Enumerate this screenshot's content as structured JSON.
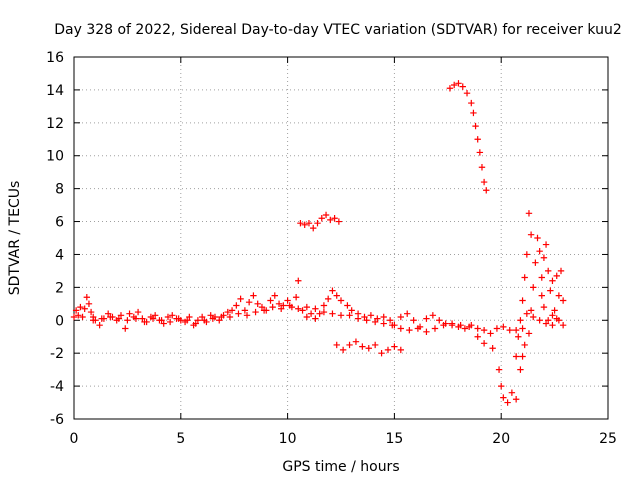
{
  "chart_data": {
    "type": "scatter",
    "title": "Day 328 of 2022, Sidereal Day-to-day VTEC variation (SDTVAR) for receiver kuu2",
    "xlabel": "GPS time / hours",
    "ylabel": "SDTVAR / TECUs",
    "xlim": [
      0,
      25
    ],
    "ylim": [
      -6,
      16
    ],
    "x_ticks": [
      0,
      5,
      10,
      15,
      20,
      25
    ],
    "y_ticks": [
      -6,
      -4,
      -2,
      0,
      2,
      4,
      6,
      8,
      10,
      12,
      14,
      16
    ],
    "x_tick_labels": [
      "0",
      "5",
      "10",
      "15",
      "20",
      "25"
    ],
    "y_tick_labels": [
      "-6",
      "-4",
      "-2",
      "0",
      "2",
      "4",
      "6",
      "8",
      "10",
      "12",
      "14",
      "16"
    ],
    "grid": true,
    "marker": "+",
    "marker_color": "#ff0000",
    "series": [
      {
        "name": "SDTVAR",
        "points": [
          [
            0.0,
            0.2
          ],
          [
            0.1,
            0.6
          ],
          [
            0.2,
            0.3
          ],
          [
            0.3,
            0.8
          ],
          [
            0.4,
            0.2
          ],
          [
            0.5,
            0.7
          ],
          [
            0.6,
            1.4
          ],
          [
            0.7,
            1.0
          ],
          [
            0.8,
            0.5
          ],
          [
            0.9,
            0.2
          ],
          [
            1.0,
            0.0
          ],
          [
            1.2,
            -0.3
          ],
          [
            1.4,
            0.1
          ],
          [
            1.6,
            0.4
          ],
          [
            1.8,
            0.2
          ],
          [
            2.0,
            0.0
          ],
          [
            2.2,
            0.3
          ],
          [
            2.4,
            -0.5
          ],
          [
            2.6,
            0.4
          ],
          [
            2.8,
            0.2
          ],
          [
            3.0,
            0.5
          ],
          [
            3.2,
            0.1
          ],
          [
            3.4,
            -0.1
          ],
          [
            3.6,
            0.2
          ],
          [
            3.8,
            0.3
          ],
          [
            4.0,
            0.0
          ],
          [
            4.2,
            -0.2
          ],
          [
            4.4,
            0.2
          ],
          [
            4.6,
            0.3
          ],
          [
            4.8,
            0.1
          ],
          [
            5.0,
            0.0
          ],
          [
            5.2,
            -0.1
          ],
          [
            5.4,
            0.2
          ],
          [
            5.6,
            -0.3
          ],
          [
            5.8,
            0.0
          ],
          [
            6.0,
            0.2
          ],
          [
            6.2,
            -0.1
          ],
          [
            6.4,
            0.3
          ],
          [
            6.6,
            0.2
          ],
          [
            6.8,
            0.0
          ],
          [
            7.0,
            0.3
          ],
          [
            7.2,
            0.5
          ],
          [
            7.4,
            0.6
          ],
          [
            7.6,
            0.9
          ],
          [
            7.8,
            1.3
          ],
          [
            8.0,
            0.6
          ],
          [
            8.2,
            1.1
          ],
          [
            8.4,
            1.5
          ],
          [
            8.6,
            1.0
          ],
          [
            8.8,
            0.8
          ],
          [
            9.0,
            0.6
          ],
          [
            9.2,
            1.2
          ],
          [
            9.4,
            1.5
          ],
          [
            9.6,
            1.0
          ],
          [
            9.8,
            0.9
          ],
          [
            10.0,
            1.2
          ],
          [
            10.2,
            0.8
          ],
          [
            10.4,
            1.4
          ],
          [
            10.5,
            2.4
          ],
          [
            10.7,
            0.6
          ],
          [
            10.9,
            0.2
          ],
          [
            11.1,
            0.4
          ],
          [
            11.3,
            0.1
          ],
          [
            11.5,
            0.4
          ],
          [
            11.7,
            0.9
          ],
          [
            11.9,
            1.3
          ],
          [
            12.1,
            1.8
          ],
          [
            12.3,
            1.5
          ],
          [
            12.5,
            1.2
          ],
          [
            12.8,
            0.9
          ],
          [
            13.0,
            0.6
          ],
          [
            13.3,
            0.4
          ],
          [
            13.6,
            0.2
          ],
          [
            13.9,
            0.3
          ],
          [
            14.2,
            0.1
          ],
          [
            14.5,
            0.2
          ],
          [
            14.8,
            0.0
          ],
          [
            15.0,
            -0.3
          ],
          [
            15.3,
            0.2
          ],
          [
            15.6,
            0.4
          ],
          [
            15.9,
            0.0
          ],
          [
            16.2,
            -0.4
          ],
          [
            16.5,
            0.1
          ],
          [
            16.8,
            0.3
          ],
          [
            17.1,
            0.0
          ],
          [
            17.4,
            -0.2
          ],
          [
            17.7,
            -0.3
          ],
          [
            18.0,
            -0.4
          ],
          [
            18.3,
            -0.5
          ],
          [
            18.6,
            -0.3
          ],
          [
            18.9,
            -0.5
          ],
          [
            19.2,
            -0.6
          ],
          [
            19.5,
            -0.8
          ],
          [
            19.8,
            -0.5
          ],
          [
            20.1,
            -0.4
          ],
          [
            20.4,
            -0.6
          ],
          [
            20.7,
            -0.6
          ],
          [
            21.0,
            -0.5
          ],
          [
            21.2,
            0.4
          ],
          [
            21.5,
            0.2
          ],
          [
            21.8,
            0.0
          ],
          [
            22.1,
            -0.2
          ],
          [
            22.4,
            0.3
          ],
          [
            22.7,
            0.0
          ],
          [
            22.9,
            -0.3
          ],
          [
            0.9,
            0.0
          ],
          [
            1.3,
            0.1
          ],
          [
            1.7,
            0.2
          ],
          [
            2.1,
            0.1
          ],
          [
            2.5,
            0.0
          ],
          [
            2.9,
            0.1
          ],
          [
            3.3,
            -0.1
          ],
          [
            3.7,
            0.1
          ],
          [
            4.1,
            0.0
          ],
          [
            4.5,
            -0.1
          ],
          [
            4.9,
            0.1
          ],
          [
            5.3,
            0.0
          ],
          [
            5.7,
            -0.2
          ],
          [
            6.1,
            0.0
          ],
          [
            6.5,
            0.1
          ],
          [
            6.9,
            0.2
          ],
          [
            7.3,
            0.2
          ],
          [
            7.7,
            0.4
          ],
          [
            8.1,
            0.3
          ],
          [
            8.5,
            0.5
          ],
          [
            8.9,
            0.6
          ],
          [
            9.3,
            0.8
          ],
          [
            9.7,
            0.7
          ],
          [
            10.1,
            0.9
          ],
          [
            10.5,
            0.7
          ],
          [
            10.9,
            0.8
          ],
          [
            11.3,
            0.7
          ],
          [
            11.7,
            0.5
          ],
          [
            12.1,
            0.4
          ],
          [
            12.5,
            0.3
          ],
          [
            12.9,
            0.3
          ],
          [
            13.3,
            0.1
          ],
          [
            13.7,
            0.0
          ],
          [
            14.1,
            -0.1
          ],
          [
            14.5,
            -0.2
          ],
          [
            14.9,
            -0.3
          ],
          [
            15.3,
            -0.5
          ],
          [
            15.7,
            -0.6
          ],
          [
            16.1,
            -0.5
          ],
          [
            16.5,
            -0.7
          ],
          [
            16.9,
            -0.5
          ],
          [
            17.3,
            -0.3
          ],
          [
            17.7,
            -0.2
          ],
          [
            18.1,
            -0.3
          ],
          [
            18.5,
            -0.4
          ],
          [
            18.9,
            -1.0
          ],
          [
            19.2,
            -1.4
          ],
          [
            19.6,
            -1.7
          ],
          [
            19.9,
            -3.0
          ],
          [
            20.0,
            -4.0
          ],
          [
            20.1,
            -4.7
          ],
          [
            20.3,
            -5.0
          ],
          [
            20.5,
            -4.4
          ],
          [
            20.7,
            -4.8
          ],
          [
            20.9,
            -3.0
          ],
          [
            21.0,
            -2.2
          ],
          [
            21.1,
            -1.5
          ],
          [
            21.3,
            -0.8
          ],
          [
            21.4,
            0.6
          ],
          [
            21.5,
            2.0
          ],
          [
            21.6,
            3.5
          ],
          [
            21.7,
            5.0
          ],
          [
            21.8,
            4.2
          ],
          [
            21.9,
            2.6
          ],
          [
            22.0,
            3.8
          ],
          [
            22.1,
            4.6
          ],
          [
            22.2,
            3.0
          ],
          [
            22.3,
            1.8
          ],
          [
            22.4,
            2.4
          ],
          [
            22.5,
            0.6
          ],
          [
            22.6,
            2.7
          ],
          [
            22.7,
            1.5
          ],
          [
            22.8,
            3.0
          ],
          [
            22.9,
            1.2
          ],
          [
            21.3,
            6.5
          ],
          [
            21.4,
            5.2
          ],
          [
            21.2,
            4.0
          ],
          [
            21.1,
            2.6
          ],
          [
            21.0,
            1.2
          ],
          [
            20.9,
            0.0
          ],
          [
            20.8,
            -1.0
          ],
          [
            20.7,
            -2.2
          ],
          [
            21.9,
            1.5
          ],
          [
            22.0,
            0.8
          ],
          [
            22.2,
            0.0
          ],
          [
            22.4,
            -0.3
          ],
          [
            22.6,
            0.1
          ],
          [
            10.6,
            5.9
          ],
          [
            10.8,
            5.8
          ],
          [
            11.0,
            5.9
          ],
          [
            11.2,
            5.6
          ],
          [
            11.4,
            5.9
          ],
          [
            11.6,
            6.2
          ],
          [
            11.8,
            6.4
          ],
          [
            12.0,
            6.1
          ],
          [
            12.2,
            6.2
          ],
          [
            12.4,
            6.0
          ],
          [
            12.3,
            -1.5
          ],
          [
            12.6,
            -1.8
          ],
          [
            12.9,
            -1.5
          ],
          [
            13.2,
            -1.3
          ],
          [
            13.5,
            -1.6
          ],
          [
            13.8,
            -1.7
          ],
          [
            14.1,
            -1.5
          ],
          [
            14.4,
            -2.0
          ],
          [
            14.7,
            -1.8
          ],
          [
            15.0,
            -1.6
          ],
          [
            15.3,
            -1.8
          ],
          [
            17.6,
            14.1
          ],
          [
            17.8,
            14.3
          ],
          [
            18.0,
            14.4
          ],
          [
            18.2,
            14.2
          ],
          [
            18.4,
            13.8
          ],
          [
            18.6,
            13.2
          ],
          [
            18.7,
            12.6
          ],
          [
            18.8,
            11.8
          ],
          [
            18.9,
            11.0
          ],
          [
            19.0,
            10.2
          ],
          [
            19.1,
            9.3
          ],
          [
            19.2,
            8.4
          ],
          [
            19.3,
            7.9
          ]
        ]
      }
    ]
  }
}
